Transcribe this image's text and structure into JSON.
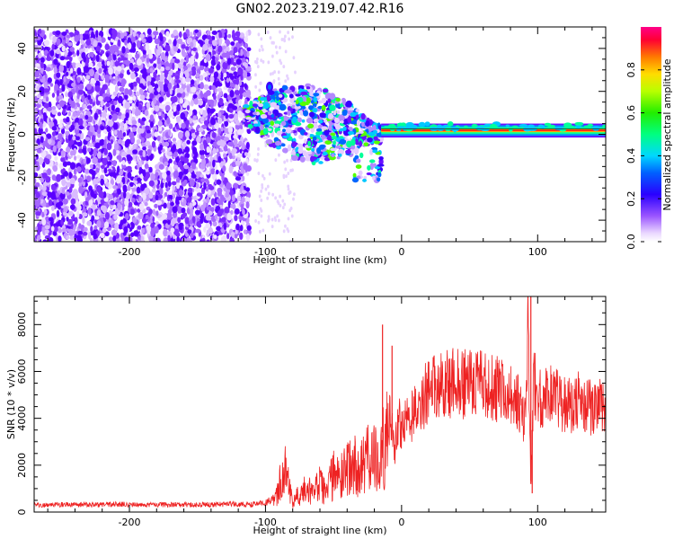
{
  "figure": {
    "title": "GN02.2023.219.07.42.R16"
  },
  "chart_data": [
    {
      "type": "heatmap",
      "xlabel": "Height of straight line (km)",
      "ylabel": "Frequency (Hz)",
      "xlim": [
        -270,
        150
      ],
      "ylim": [
        -50,
        50
      ],
      "xticks": [
        -200,
        -100,
        0,
        100
      ],
      "yticks": [
        -40,
        -20,
        0,
        20,
        40
      ],
      "grid": false,
      "regions": [
        {
          "name": "noise",
          "x": [
            -270,
            -112
          ],
          "y": [
            -50,
            48
          ],
          "amplitude": 0.15
        },
        {
          "name": "dispersed-fragments",
          "x": [
            -115,
            -15
          ],
          "y": [
            -25,
            25
          ],
          "amplitude": 0.45
        },
        {
          "name": "signal-line",
          "x": [
            -15,
            150
          ],
          "y": [
            0,
            5
          ],
          "amplitude": 0.95
        }
      ],
      "colorbar": {
        "label": "Normalized spectral amplitude",
        "range": [
          0,
          1
        ],
        "ticks": [
          "0.0",
          "0.2",
          "0.4",
          "0.6",
          "0.8"
        ],
        "tick_values": [
          0.0,
          0.2,
          0.4,
          0.6,
          0.8
        ]
      }
    },
    {
      "type": "line",
      "xlabel": "Height of straight line (km)",
      "ylabel": "SNR (10 * v/v)",
      "xlim": [
        -270,
        150
      ],
      "ylim": [
        0,
        9200
      ],
      "xticks": [
        -200,
        -100,
        0,
        100
      ],
      "yticks": [
        0,
        2000,
        4000,
        6000,
        8000
      ],
      "grid": false,
      "color": "#ee2222",
      "x": [
        -270,
        -250,
        -230,
        -210,
        -190,
        -170,
        -150,
        -130,
        -110,
        -100,
        -92,
        -88,
        -85,
        -80,
        -75,
        -70,
        -65,
        -60,
        -55,
        -50,
        -45,
        -40,
        -35,
        -30,
        -25,
        -20,
        -16,
        -14,
        -12,
        -10,
        -8,
        -5,
        -3,
        0,
        5,
        10,
        15,
        20,
        25,
        30,
        35,
        40,
        45,
        50,
        55,
        60,
        65,
        70,
        75,
        80,
        85,
        90,
        93,
        95,
        97,
        100,
        105,
        110,
        115,
        120,
        125,
        130,
        135,
        140,
        145,
        150
      ],
      "y": [
        300,
        320,
        310,
        330,
        300,
        320,
        310,
        340,
        320,
        400,
        600,
        1500,
        1800,
        500,
        900,
        1000,
        800,
        1200,
        900,
        1600,
        1400,
        1900,
        2000,
        1800,
        2200,
        2400,
        1500,
        3400,
        2800,
        3600,
        4200,
        2600,
        4000,
        3700,
        3900,
        4400,
        4800,
        5200,
        5400,
        5300,
        5500,
        5600,
        5500,
        5400,
        5500,
        5500,
        5300,
        5200,
        5200,
        5000,
        4700,
        3800,
        8200,
        1200,
        5800,
        4900,
        5000,
        4900,
        4800,
        4700,
        4600,
        4700,
        4500,
        4400,
        4500,
        4300
      ],
      "spikes": [
        {
          "x": -14,
          "y": 8000
        },
        {
          "x": -7,
          "y": 7100
        },
        {
          "x": 95,
          "y": 9200
        },
        {
          "x": 96,
          "y": 800
        }
      ]
    }
  ]
}
